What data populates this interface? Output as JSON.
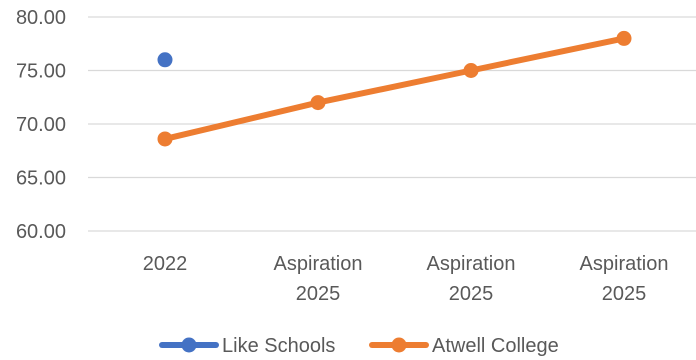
{
  "chart_data": {
    "type": "line",
    "categories": [
      [
        "2022"
      ],
      [
        "Aspiration",
        "2025"
      ],
      [
        "Aspiration",
        "2025"
      ],
      [
        "Aspiration",
        "2025"
      ]
    ],
    "ylim": [
      60,
      80
    ],
    "yticks": [
      "60.00",
      "65.00",
      "70.00",
      "75.00",
      "80.00"
    ],
    "ytick_values": [
      60,
      65,
      70,
      75,
      80
    ],
    "grid": true,
    "legend_position": "bottom",
    "series": [
      {
        "name": "Like Schools",
        "color": "#4472C4",
        "values": [
          76.0,
          null,
          null,
          null
        ]
      },
      {
        "name": "Atwell College",
        "color": "#ED7D31",
        "values": [
          68.6,
          72.0,
          75.0,
          78.0
        ]
      }
    ]
  }
}
